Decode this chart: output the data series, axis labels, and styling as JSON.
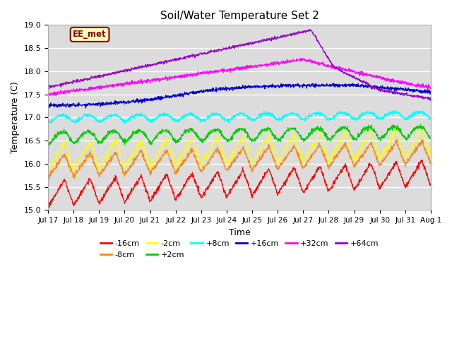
{
  "title": "Soil/Water Temperature Set 2",
  "xlabel": "Time",
  "ylabel": "Temperature (C)",
  "ylim": [
    15.0,
    19.0
  ],
  "yticks": [
    15.0,
    15.5,
    16.0,
    16.5,
    17.0,
    17.5,
    18.0,
    18.5,
    19.0
  ],
  "xtick_labels": [
    "Jul 17",
    "Jul 18",
    "Jul 19",
    "Jul 20",
    "Jul 21",
    "Jul 22",
    "Jul 23",
    "Jul 24",
    "Jul 25",
    "Jul 26",
    "Jul 27",
    "Jul 28",
    "Jul 29",
    "Jul 30",
    "Jul 31",
    "Aug 1"
  ],
  "bg_color": "#dcdcdc",
  "legend_label": "EE_met",
  "legend_bg": "#ffffc0",
  "legend_border": "#8b0000",
  "series": [
    {
      "label": "-16cm",
      "color": "#ff0000"
    },
    {
      "label": "-8cm",
      "color": "#ff8800"
    },
    {
      "label": "-2cm",
      "color": "#ffff00"
    },
    {
      "label": "+2cm",
      "color": "#00cc00"
    },
    {
      "label": "+8cm",
      "color": "#00ffff"
    },
    {
      "label": "+16cm",
      "color": "#0000cc"
    },
    {
      "label": "+32cm",
      "color": "#ff00ff"
    },
    {
      "label": "+64cm",
      "color": "#9900cc"
    }
  ],
  "n_points": 1440,
  "n_days": 15
}
